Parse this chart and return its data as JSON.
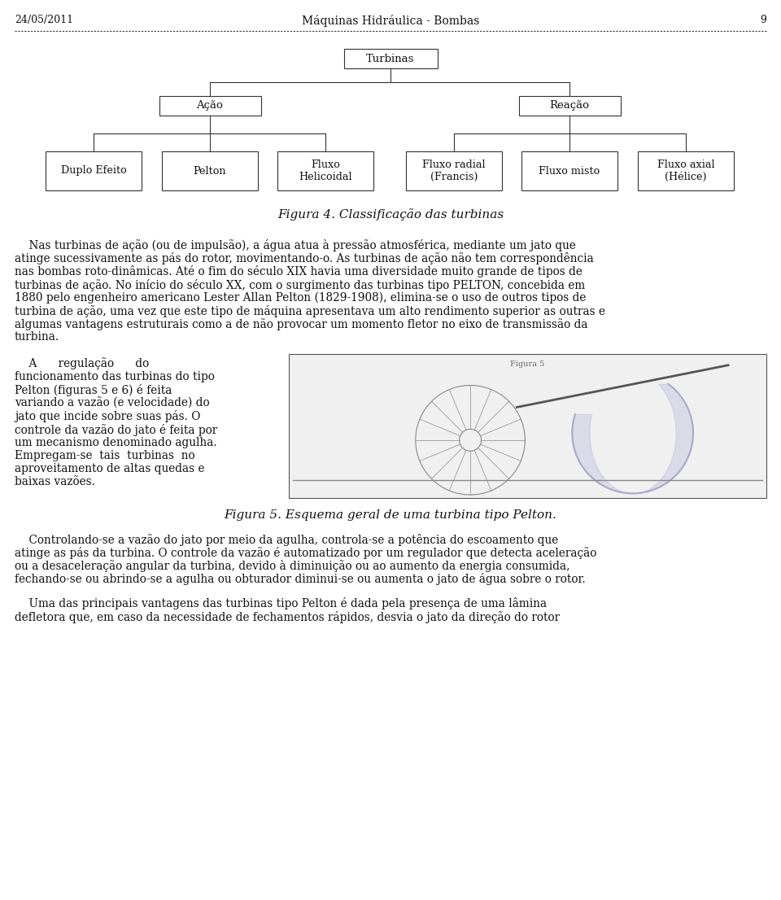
{
  "page_date": "24/05/2011",
  "page_title": "Máquinas Hidráulica - Bombas",
  "page_number": "9",
  "figure4_caption": "Figura 4. Classificação das turbinas",
  "figure5_caption": "Figura 5. Esquema geral de uma turbina tipo Pelton.",
  "tree": {
    "root": "Turbinas",
    "level1": [
      "Ação",
      "Reação"
    ],
    "level2_acao": [
      "Duplo Efeito",
      "Pelton",
      "Fluxo\nHelicoidal"
    ],
    "level2_reacao": [
      "Fluxo radial\n(Francis)",
      "Fluxo misto",
      "Fluxo axial\n(Hélice)"
    ]
  },
  "paragraph1_indent": "    Nas turbinas de ação (ou de impulsão), a água atua à pressão atmosférica, mediante um jato que",
  "paragraph1_rest": "atinge sucessivamente as pás do rotor, movimentando-o. As turbinas de ação não tem correspondência nas bombas roto-dinâmicas. Até o fim do século XIX havia uma diversidade muito grande de tipos de turbinas de ação. No início do século XX, com o surgimento das turbinas tipo PELTON, concebida em 1880 pelo engenheiro americano Lester Allan Pelton (1829-1908), elimina-se o uso de outros tipos de turbina de ação, uma vez que este tipo de máquina apresentava um alto rendimento superior as outras e algumas vantagens estruturais como a de não provocar um momento fletor no eixo de transmissão da turbina.",
  "para1_lines": [
    "    Nas turbinas de ação (ou de impulsão), a água atua à pressão atmosférica, mediante um jato que",
    "atinge sucessivamente as pás do rotor, movimentando-o. As turbinas de ação não tem correspondência",
    "nas bombas roto-dinâmicas. Até o fim do século XIX havia uma diversidade muito grande de tipos de",
    "turbinas de ação. No início do século XX, com o surgimento das turbinas tipo PELTON, concebida em",
    "1880 pelo engenheiro americano Lester Allan Pelton (1829-1908), elimina-se o uso de outros tipos de",
    "turbina de ação, uma vez que este tipo de máquina apresentava um alto rendimento superior as outras e",
    "algumas vantagens estruturais como a de não provocar um momento fletor no eixo de transmissão da",
    "turbina."
  ],
  "para2_lines": [
    "    A      regulação      do",
    "funcionamento das turbinas do tipo",
    "Pelton (figuras 5 e 6) é feita",
    "variando a vazão (e velocidade) do",
    "jato que incide sobre suas pás. O",
    "controle da vazão do jato é feita por",
    "um mecanismo denominado agulha.",
    "Empregam-se  tais  turbinas  no",
    "aproveitamento de altas quedas e",
    "baixas vazões."
  ],
  "para3_lines": [
    "    Controlando-se a vazão do jato por meio da agulha, controla-se a potência do escoamento que",
    "atinge as pás da turbina. O controle da vazão é automatizado por um regulador que detecta aceleração",
    "ou a desaceleração angular da turbina, devido à diminuição ou ao aumento da energia consumida,",
    "fechando-se ou abrindo-se a agulha ou obturador diminui-se ou aumenta o jato de água sobre o rotor."
  ],
  "para4_lines": [
    "    Uma das principais vantagens das turbinas tipo Pelton é dada pela presença de uma lâmina",
    "defletora que, em caso da necessidade de fechamentos rápidos, desvia o jato da direção do rotor"
  ],
  "bg_color": "#ffffff",
  "text_color": "#000000"
}
